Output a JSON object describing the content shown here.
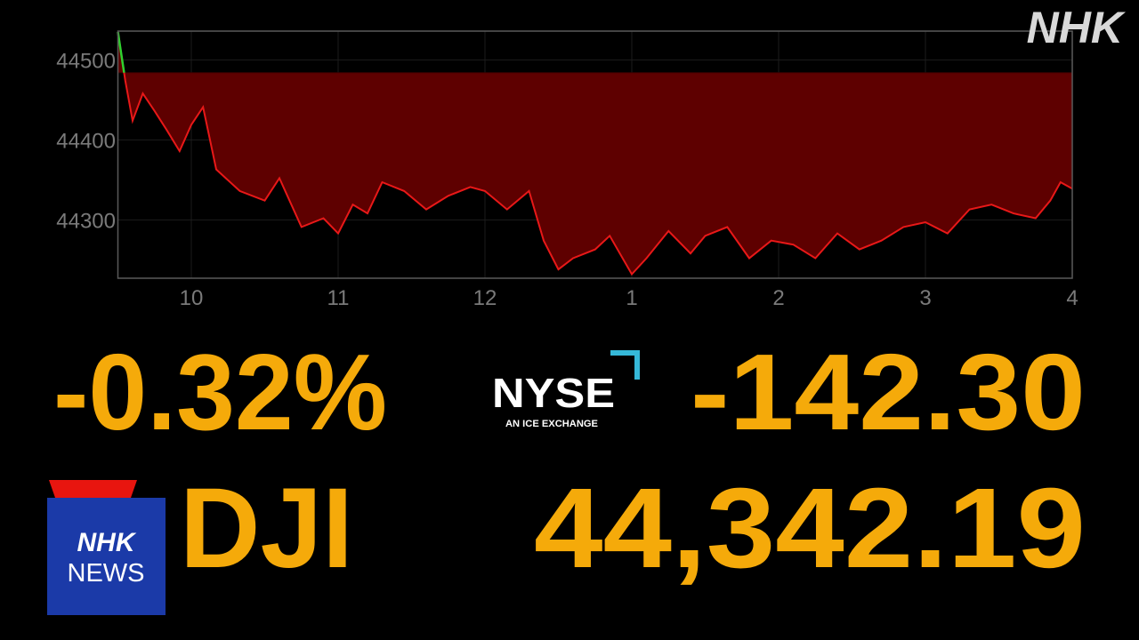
{
  "chart_data": {
    "type": "area",
    "x": [
      9.5,
      9.55,
      9.6,
      9.67,
      9.75,
      9.83,
      9.92,
      10.0,
      10.08,
      10.17,
      10.33,
      10.5,
      10.6,
      10.75,
      10.9,
      11.0,
      11.1,
      11.2,
      11.3,
      11.45,
      11.6,
      11.75,
      11.9,
      12.0,
      12.15,
      12.3,
      12.4,
      12.5,
      12.6,
      12.75,
      12.85,
      13.0,
      13.1,
      13.25,
      13.4,
      13.5,
      13.65,
      13.8,
      13.95,
      14.1,
      14.25,
      14.4,
      14.55,
      14.7,
      14.85,
      15.0,
      15.15,
      15.3,
      15.45,
      15.6,
      15.75,
      15.85,
      15.92,
      16.0
    ],
    "values": [
      44535,
      44474,
      44424,
      44458,
      44436,
      44413,
      44386,
      44419,
      44441,
      44363,
      44336,
      44324,
      44352,
      44291,
      44302,
      44283,
      44319,
      44308,
      44347,
      44336,
      44313,
      44330,
      44341,
      44336,
      44313,
      44336,
      44274,
      44238,
      44252,
      44263,
      44280,
      44232,
      44252,
      44286,
      44258,
      44280,
      44291,
      44252,
      44274,
      44269,
      44252,
      44283,
      44263,
      44274,
      44291,
      44297,
      44283,
      44313,
      44319,
      44308,
      44302,
      44324,
      44347,
      44339
    ],
    "baseline": 44484,
    "color": "#e81818",
    "fill": "#5e0000",
    "up_color": "#2fd12f",
    "xlim": [
      9.5,
      16
    ],
    "ylim": [
      44227,
      44536
    ],
    "xticks": [
      10,
      11,
      12,
      {
        "value": 13,
        "label": "1"
      },
      {
        "value": 14,
        "label": "2"
      },
      {
        "value": 15,
        "label": "3"
      },
      {
        "value": 16,
        "label": "4"
      }
    ],
    "yticks": [
      44500,
      44400,
      44300
    ],
    "grid": true
  },
  "quote": {
    "change_percent": "-0.32%",
    "change": "-142.30",
    "symbol": "DJI",
    "price": "44,342.19"
  },
  "exchange": {
    "name": "NYSE",
    "tagline": "AN ICE EXCHANGE"
  },
  "broadcaster": {
    "mark": "NHK",
    "logo_top": "NHK",
    "logo_bottom": "NEWS"
  }
}
